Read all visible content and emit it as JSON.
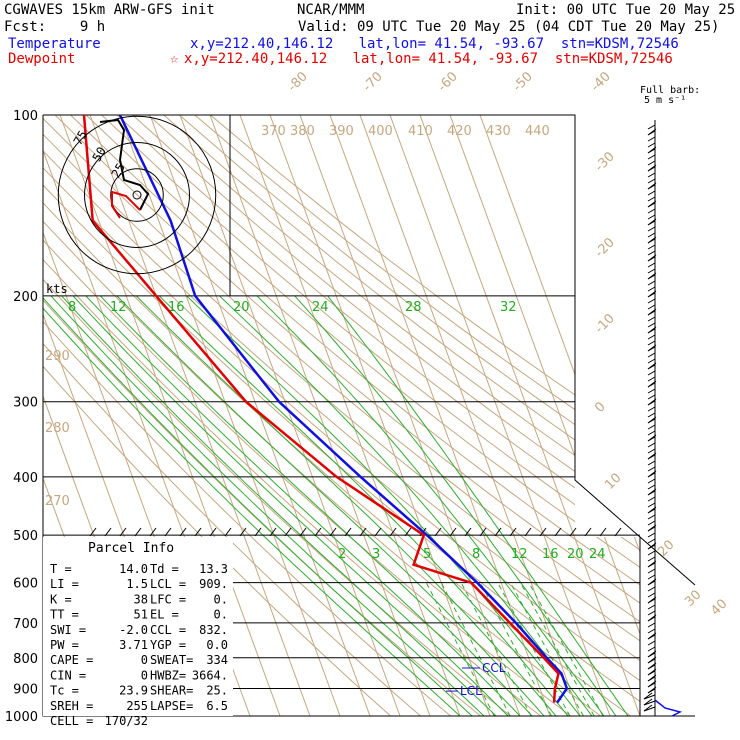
{
  "header": {
    "model": "CGWAVES 15km ARW-GFS init",
    "org": "NCAR/MMM",
    "init": "Init: 00 UTC Tue 20 May 25",
    "fcst": "Fcst:    9 h",
    "valid": "Valid: 09 UTC Tue 20 May 25 (04 CDT Tue 20 May 25)",
    "temp_label": "Temperature",
    "temp_loc": "x,y=212.40,146.12   lat,lon= 41.54, -93.67  stn=KDSM,72546",
    "dew_label": "Dewpoint",
    "dew_marker": "☆",
    "dew_loc": "x,y=212.40,146.12   lat,lon= 41.54, -93.67  stn=KDSM,72546",
    "barb_title": "Full barb:",
    "barb_unit": "5 m s⁻¹"
  },
  "colors": {
    "temperature": "#1010e0",
    "dewpoint": "#e00000",
    "isotherm": "#c4a882",
    "mixing_ratio": "#22aa22"
  },
  "parcel": {
    "title": "Parcel Info",
    "rows": [
      [
        "T  =",
        "14.0",
        "Td =",
        "13.3"
      ],
      [
        "LI =",
        "1.5",
        "LCL =",
        "909."
      ],
      [
        "K  =",
        "38",
        "LFC =",
        "0."
      ],
      [
        "TT =",
        "51",
        "EL  =",
        "0."
      ],
      [
        "SWI =",
        "-2.0",
        "CCL =",
        "832."
      ],
      [
        "PW =",
        "3.71",
        "YGP =",
        "0.0"
      ],
      [
        "CAPE =",
        "0",
        "SWEAT=",
        "334"
      ],
      [
        "CIN =",
        "0",
        "HWBZ=",
        "3664."
      ],
      [
        "Tc =",
        "23.9",
        "SHEAR=",
        "25."
      ],
      [
        "SREH =",
        "255",
        "LAPSE=",
        "6.5"
      ],
      [
        "CELL =",
        "170/32",
        "",
        ""
      ]
    ]
  },
  "hodograph": {
    "unit": "kts",
    "rings": [
      "75",
      "50",
      "25"
    ]
  },
  "chart_data": {
    "type": "line",
    "title": "",
    "pressure_levels": [
      100,
      200,
      300,
      400,
      500,
      600,
      700,
      800,
      900,
      1000
    ],
    "isotherm_labels": [
      "-80",
      "-70",
      "-60",
      "-50",
      "-40",
      "-30",
      "-20",
      "-10",
      "0",
      "10",
      "20",
      "30",
      "40"
    ],
    "theta_labels": [
      "370",
      "380",
      "390",
      "400",
      "410",
      "420",
      "430",
      "440"
    ],
    "theta_low_labels": [
      "290",
      "280",
      "270"
    ],
    "mixing_ratio_labels_top": [
      "8",
      "12",
      "16",
      "20",
      "24",
      "28",
      "32"
    ],
    "mixing_ratio_labels_mid": [
      "2",
      "3",
      "5",
      "8",
      "12",
      "16",
      "20",
      "24"
    ],
    "annotations": [
      "CCL",
      "LCL"
    ],
    "series": [
      {
        "name": "Temperature",
        "pressure": [
          100,
          150,
          200,
          300,
          400,
          500,
          600,
          700,
          800,
          850,
          900,
          950
        ],
        "temp_c": [
          -60,
          -56,
          -57,
          -42,
          -24,
          -9,
          2,
          10,
          16,
          19,
          19,
          14
        ]
      },
      {
        "name": "Dewpoint",
        "pressure": [
          100,
          150,
          200,
          300,
          400,
          500,
          560,
          600,
          700,
          800,
          850,
          900,
          950
        ],
        "temp_c": [
          -72,
          -82,
          -70,
          -53,
          -32,
          -10,
          -17,
          0,
          8,
          15,
          18,
          15,
          13
        ]
      }
    ]
  }
}
